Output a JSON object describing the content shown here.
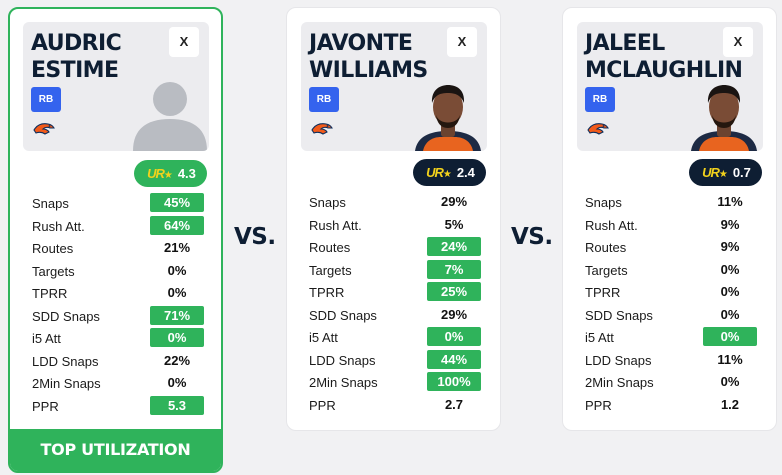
{
  "vs_label": "VS.",
  "stat_labels": [
    "Snaps",
    "Rush Att.",
    "Routes",
    "Targets",
    "TPRR",
    "SDD Snaps",
    "i5 Att",
    "LDD Snaps",
    "2Min Snaps",
    "PPR"
  ],
  "score_logo_text": "UR",
  "colors": {
    "highlight": "#2fb35b",
    "navy": "#0e1e33",
    "badge": "#3463ee"
  },
  "players": [
    {
      "name": "AUDRIC ESTIME",
      "close_label": "X",
      "position": "RB",
      "team_logo_icon": "broncos-logo-icon",
      "photo": "silhouette",
      "score": "4.3",
      "score_style": "green",
      "winner": true,
      "footer": "TOP UTILIZATION",
      "stats": [
        {
          "value": "45%",
          "hl": true
        },
        {
          "value": "64%",
          "hl": true
        },
        {
          "value": "21%",
          "hl": false
        },
        {
          "value": "0%",
          "hl": false
        },
        {
          "value": "0%",
          "hl": false
        },
        {
          "value": "71%",
          "hl": true
        },
        {
          "value": "0%",
          "hl": true
        },
        {
          "value": "22%",
          "hl": false
        },
        {
          "value": "0%",
          "hl": false
        },
        {
          "value": "5.3",
          "hl": true
        }
      ]
    },
    {
      "name": "JAVONTE WILLIAMS",
      "close_label": "X",
      "position": "RB",
      "team_logo_icon": "broncos-logo-icon",
      "photo": "headshot",
      "score": "2.4",
      "score_style": "dark",
      "winner": false,
      "stats": [
        {
          "value": "29%",
          "hl": false
        },
        {
          "value": "5%",
          "hl": false
        },
        {
          "value": "24%",
          "hl": true
        },
        {
          "value": "7%",
          "hl": true
        },
        {
          "value": "25%",
          "hl": true
        },
        {
          "value": "29%",
          "hl": false
        },
        {
          "value": "0%",
          "hl": true
        },
        {
          "value": "44%",
          "hl": true
        },
        {
          "value": "100%",
          "hl": true
        },
        {
          "value": "2.7",
          "hl": false
        }
      ]
    },
    {
      "name": "JALEEL MCLAUGHLIN",
      "close_label": "X",
      "position": "RB",
      "team_logo_icon": "broncos-logo-icon",
      "photo": "headshot",
      "score": "0.7",
      "score_style": "dark",
      "winner": false,
      "stats": [
        {
          "value": "11%",
          "hl": false
        },
        {
          "value": "9%",
          "hl": false
        },
        {
          "value": "9%",
          "hl": false
        },
        {
          "value": "0%",
          "hl": false
        },
        {
          "value": "0%",
          "hl": false
        },
        {
          "value": "0%",
          "hl": false
        },
        {
          "value": "0%",
          "hl": true
        },
        {
          "value": "11%",
          "hl": false
        },
        {
          "value": "0%",
          "hl": false
        },
        {
          "value": "1.2",
          "hl": false
        }
      ]
    }
  ]
}
